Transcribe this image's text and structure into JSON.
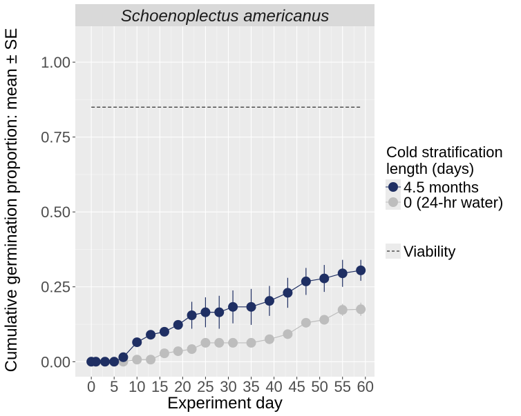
{
  "colors": {
    "panel": "#ebebeb",
    "grid_major": "#ffffff",
    "strip": "#d9d9d9",
    "series_dark": "#1f2f63",
    "series_light": "#bdbdbd",
    "viability": "#000000"
  },
  "chart_data": {
    "type": "line",
    "title": "Schoenoplectus americanus",
    "xlabel": "Experiment day",
    "ylabel": "Cumulative germination proportion: mean ± SE",
    "xlim": [
      -3.5,
      62
    ],
    "ylim": [
      -0.05,
      1.12
    ],
    "xticks": [
      0,
      5,
      10,
      15,
      20,
      25,
      30,
      35,
      40,
      45,
      50,
      55,
      60
    ],
    "xtick_labels": [
      "0",
      "5",
      "10",
      "15",
      "20",
      "25",
      "30",
      "35",
      "40",
      "45",
      "50",
      "55",
      "60"
    ],
    "yticks": [
      0,
      0.25,
      0.5,
      0.75,
      1.0
    ],
    "ytick_labels": [
      "0.00",
      "0.25",
      "0.50",
      "0.75",
      "1.00"
    ],
    "legend": {
      "title_line1": "Cold stratification",
      "title_line2": "length (days)",
      "placement": "right",
      "viability_label": "Viability"
    },
    "viability": {
      "value": 0.85,
      "x_start": 0,
      "x_end": 59
    },
    "series": [
      {
        "name": "4.5 months",
        "color": "#1f2f63",
        "x": [
          0,
          1,
          3,
          5,
          7,
          10,
          13,
          16,
          19,
          22,
          25,
          28,
          31,
          35,
          39,
          43,
          47,
          51,
          55,
          59
        ],
        "y": [
          0,
          0,
          0,
          0,
          0.015,
          0.065,
          0.09,
          0.1,
          0.123,
          0.155,
          0.165,
          0.165,
          0.183,
          0.183,
          0.203,
          0.23,
          0.268,
          0.278,
          0.295,
          0.305
        ],
        "se": [
          0,
          0,
          0,
          0,
          0.008,
          0.012,
          0.012,
          0.015,
          0.015,
          0.045,
          0.05,
          0.055,
          0.055,
          0.06,
          0.05,
          0.05,
          0.045,
          0.045,
          0.045,
          0.035
        ]
      },
      {
        "name": "0 (24-hr water)",
        "color": "#bdbdbd",
        "x": [
          0,
          1,
          3,
          5,
          7,
          10,
          13,
          16,
          19,
          22,
          25,
          28,
          31,
          35,
          39,
          43,
          47,
          51,
          55,
          59
        ],
        "y": [
          0,
          0,
          0,
          0,
          0,
          0.007,
          0.007,
          0.028,
          0.035,
          0.042,
          0.063,
          0.063,
          0.063,
          0.063,
          0.075,
          0.092,
          0.13,
          0.14,
          0.173,
          0.175
        ],
        "se": [
          0,
          0,
          0,
          0,
          0,
          0.003,
          0.003,
          0.006,
          0.006,
          0.006,
          0.006,
          0.006,
          0.006,
          0.006,
          0.006,
          0.006,
          0.01,
          0.01,
          0.02,
          0.022
        ]
      }
    ]
  }
}
